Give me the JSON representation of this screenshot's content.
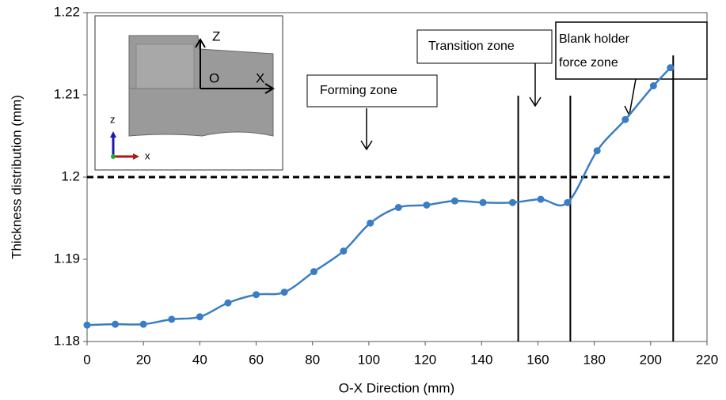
{
  "chart_data": {
    "type": "line",
    "x_label": "O-X Direction (mm)",
    "y_label": "Thickness distribution (mm)",
    "xlim": [
      0,
      220
    ],
    "xticks": [
      0,
      20,
      40,
      60,
      80,
      100,
      120,
      140,
      160,
      180,
      200,
      220
    ],
    "ylim": [
      1.18,
      1.22
    ],
    "yticks": [
      1.18,
      1.19,
      1.2,
      1.21,
      1.22
    ],
    "grid": false,
    "series": [
      {
        "color": "#3b7dc4",
        "x": [
          0,
          10,
          20,
          30,
          40,
          50,
          60,
          70,
          80.5,
          91,
          100.5,
          110.5,
          120.5,
          130.5,
          140.5,
          151,
          161,
          170.5,
          181,
          191,
          201,
          207
        ],
        "values": [
          1.182,
          1.1821,
          1.1821,
          1.1827,
          1.183,
          1.1847,
          1.1857,
          1.186,
          1.1885,
          1.191,
          1.1944,
          1.1963,
          1.1966,
          1.1971,
          1.1969,
          1.1969,
          1.1973,
          1.1969,
          1.2032,
          1.207,
          1.2111,
          1.2133
        ]
      }
    ],
    "reference_line": {
      "value": 1.2,
      "xlim": [
        0,
        208
      ]
    },
    "zone_lines": [
      {
        "x": 153,
        "top": 1.2099
      },
      {
        "x": 171.5,
        "top": 1.2099
      },
      {
        "x": 208,
        "top": 1.2148
      }
    ],
    "annotations": [
      "Forming zone",
      "Transition zone",
      [
        "Blank holder",
        "force zone"
      ]
    ],
    "inset": {
      "labels": [
        "Z",
        "O",
        "X",
        "z",
        "x"
      ]
    }
  }
}
